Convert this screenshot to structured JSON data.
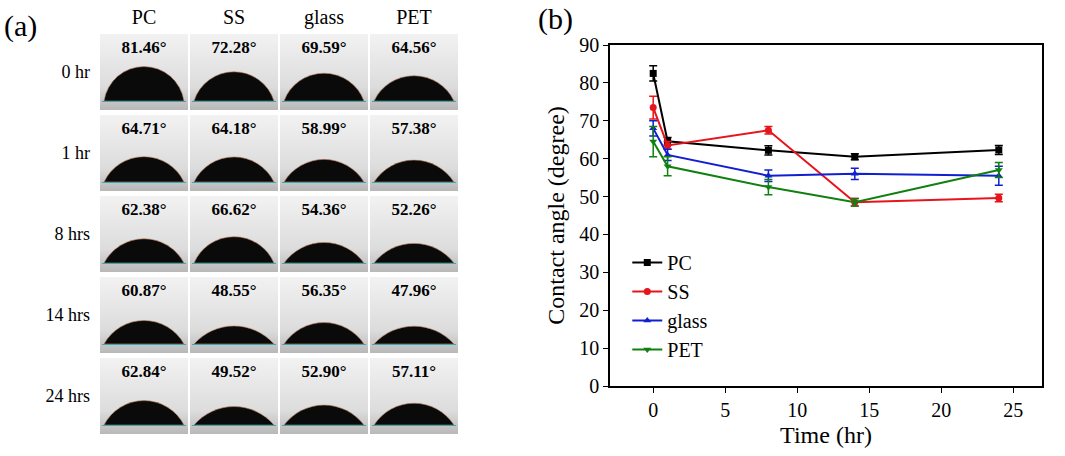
{
  "panel_a": {
    "label": "(a)",
    "columns": [
      "PC",
      "SS",
      "glass",
      "PET"
    ],
    "rows": [
      {
        "label": "0 hr",
        "angles": [
          {
            "value": 81.46,
            "label": "81.46°"
          },
          {
            "value": 72.28,
            "label": "72.28°"
          },
          {
            "value": 69.59,
            "label": "69.59°"
          },
          {
            "value": 64.56,
            "label": "64.56°"
          }
        ]
      },
      {
        "label": "1 hr",
        "angles": [
          {
            "value": 64.71,
            "label": "64.71°"
          },
          {
            "value": 64.18,
            "label": "64.18°"
          },
          {
            "value": 58.99,
            "label": "58.99°"
          },
          {
            "value": 57.38,
            "label": "57.38°"
          }
        ]
      },
      {
        "label": "8 hrs",
        "angles": [
          {
            "value": 62.38,
            "label": "62.38°"
          },
          {
            "value": 66.62,
            "label": "66.62°"
          },
          {
            "value": 54.36,
            "label": "54.36°"
          },
          {
            "value": 52.26,
            "label": "52.26°"
          }
        ]
      },
      {
        "label": "14 hrs",
        "angles": [
          {
            "value": 60.87,
            "label": "60.87°"
          },
          {
            "value": 48.55,
            "label": "48.55°"
          },
          {
            "value": 56.35,
            "label": "56.35°"
          },
          {
            "value": 47.96,
            "label": "47.96°"
          }
        ]
      },
      {
        "label": "24 hrs",
        "angles": [
          {
            "value": 62.84,
            "label": "62.84°"
          },
          {
            "value": 49.52,
            "label": "49.52°"
          },
          {
            "value": 52.9,
            "label": "52.90°"
          },
          {
            "value": 57.11,
            "label": "57.11°"
          }
        ]
      }
    ]
  },
  "chart_data": {
    "label": "(b)",
    "type": "line",
    "x_label": "Time (hr)",
    "y_label": "Contact angle (degree)",
    "x": [
      0,
      1,
      8,
      14,
      24
    ],
    "xlim": [
      -3,
      27
    ],
    "xticks": [
      0,
      5,
      10,
      15,
      20,
      25
    ],
    "ylim": [
      0,
      90
    ],
    "yticks": [
      0,
      10,
      20,
      30,
      40,
      50,
      60,
      70,
      80,
      90
    ],
    "grid": false,
    "legend": "lower left",
    "series": [
      {
        "name": "PC",
        "color": "#000000",
        "marker": "square",
        "values": [
          82.5,
          64.6,
          62.2,
          60.5,
          62.3
        ],
        "errors": [
          2.0,
          1.0,
          1.2,
          0.8,
          1.2
        ]
      },
      {
        "name": "SS",
        "color": "#e8141b",
        "marker": "circle",
        "values": [
          73.5,
          63.5,
          67.5,
          48.5,
          49.6
        ],
        "errors": [
          3.0,
          1.0,
          1.0,
          1.0,
          1.0
        ]
      },
      {
        "name": "glass",
        "color": "#1020d0",
        "marker": "triangle-up",
        "values": [
          68.0,
          61.0,
          55.5,
          56.0,
          55.5
        ],
        "errors": [
          2.0,
          1.5,
          1.5,
          1.5,
          2.5
        ]
      },
      {
        "name": "PET",
        "color": "#108010",
        "marker": "triangle-down",
        "values": [
          64.5,
          58.0,
          52.5,
          48.5,
          57.0
        ],
        "errors": [
          4.0,
          2.5,
          2.0,
          1.0,
          2.0
        ]
      }
    ]
  }
}
